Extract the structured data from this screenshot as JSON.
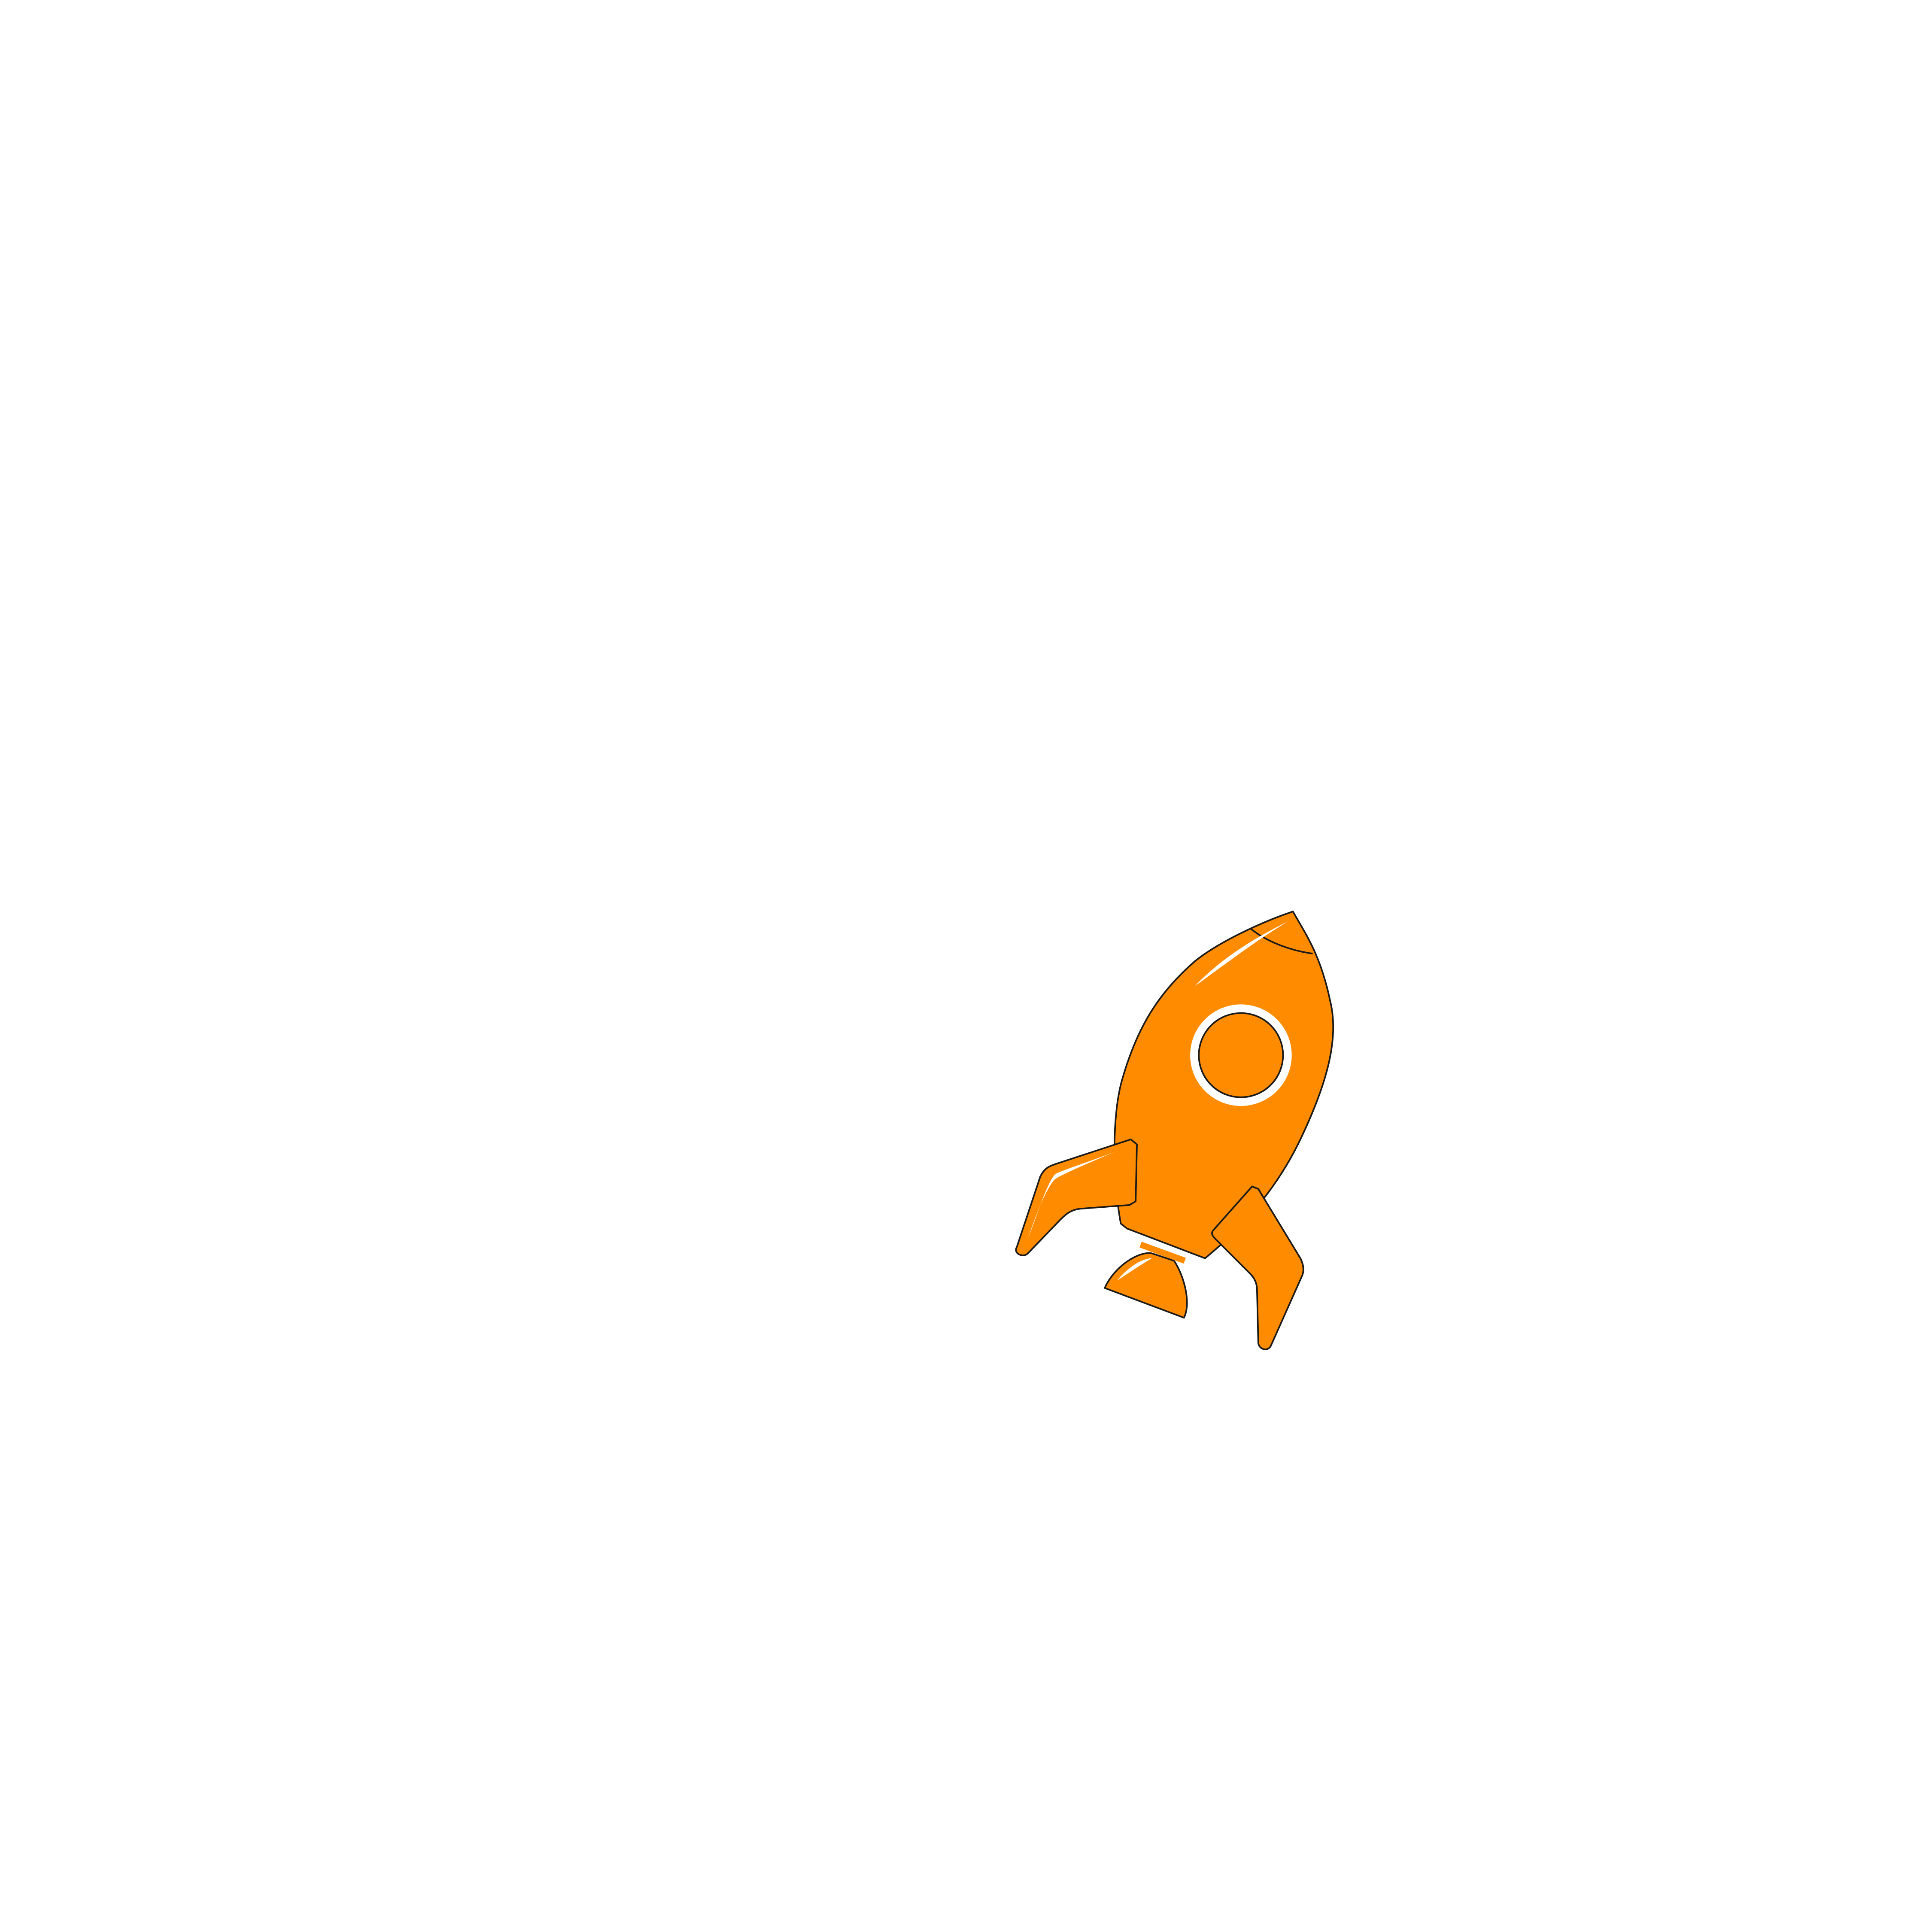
{
  "scene": {
    "background_color": "#ffffff",
    "illustration": {
      "icon": "rocket-icon",
      "body_color": "#ff8c00",
      "outline_color": "#1a1a1a",
      "highlight_color": "#ffffff"
    }
  }
}
